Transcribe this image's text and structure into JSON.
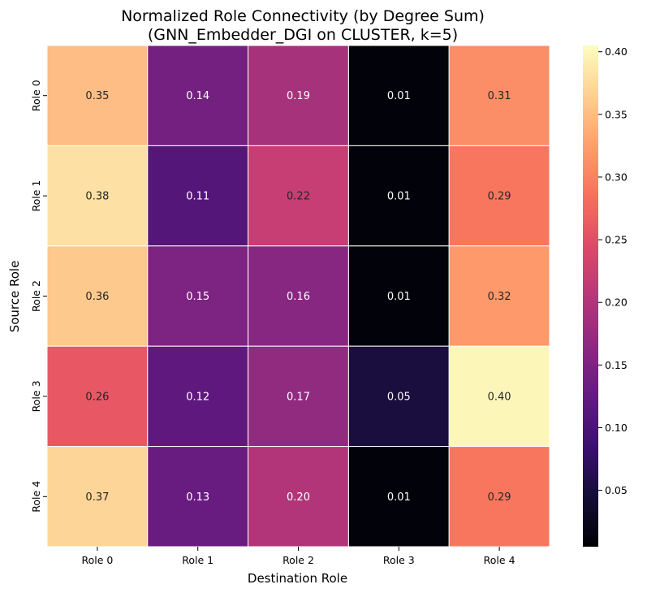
{
  "chart_data": {
    "type": "heatmap",
    "title_line1": "Normalized Role Connectivity (by Degree Sum)",
    "title_line2": "(GNN_Embedder_DGI on CLUSTER, k=5)",
    "xlabel": "Destination Role",
    "ylabel": "Source Role",
    "x_categories": [
      "Role 0",
      "Role 1",
      "Role 2",
      "Role 3",
      "Role 4"
    ],
    "y_categories": [
      "Role 0",
      "Role 1",
      "Role 2",
      "Role 3",
      "Role 4"
    ],
    "values": [
      [
        0.35,
        0.14,
        0.19,
        0.01,
        0.31
      ],
      [
        0.38,
        0.11,
        0.22,
        0.01,
        0.29
      ],
      [
        0.36,
        0.15,
        0.16,
        0.01,
        0.32
      ],
      [
        0.26,
        0.12,
        0.17,
        0.05,
        0.4
      ],
      [
        0.37,
        0.13,
        0.2,
        0.01,
        0.29
      ]
    ],
    "labels": [
      [
        "0.35",
        "0.14",
        "0.19",
        "0.01",
        "0.31"
      ],
      [
        "0.38",
        "0.11",
        "0.22",
        "0.01",
        "0.29"
      ],
      [
        "0.36",
        "0.15",
        "0.16",
        "0.01",
        "0.32"
      ],
      [
        "0.26",
        "0.12",
        "0.17",
        "0.05",
        "0.40"
      ],
      [
        "0.37",
        "0.13",
        "0.20",
        "0.01",
        "0.29"
      ]
    ],
    "colormap": "magma",
    "color_range": [
      0.005,
      0.405
    ],
    "colorbar_ticks": [
      "0.05",
      "0.10",
      "0.15",
      "0.20",
      "0.25",
      "0.30",
      "0.35",
      "0.40"
    ],
    "colorbar_tick_values": [
      0.05,
      0.1,
      0.15,
      0.2,
      0.25,
      0.3,
      0.35,
      0.4
    ]
  }
}
